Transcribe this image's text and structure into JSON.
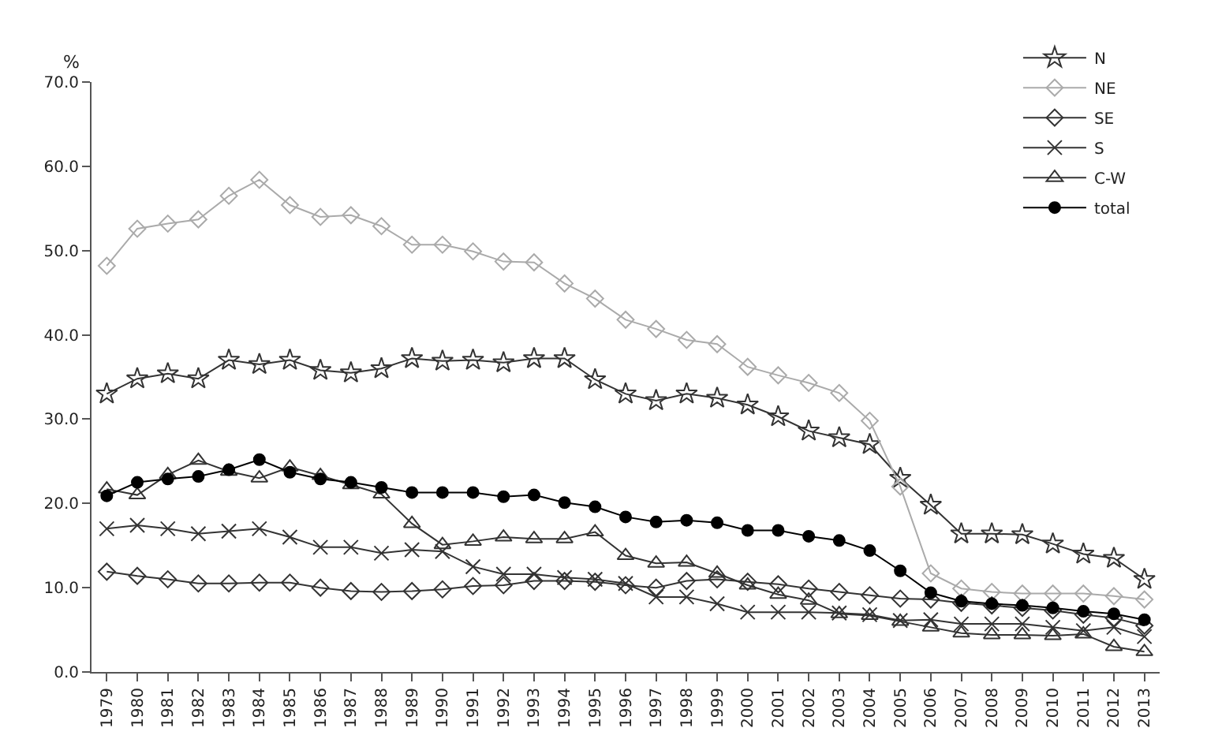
{
  "chart_data": {
    "type": "line",
    "ylabel": "%",
    "categories": [
      "1979",
      "1980",
      "1981",
      "1982",
      "1983",
      "1984",
      "1985",
      "1986",
      "1987",
      "1988",
      "1989",
      "1990",
      "1991",
      "1992",
      "1993",
      "1994",
      "1995",
      "1996",
      "1997",
      "1998",
      "1999",
      "2000",
      "2001",
      "2002",
      "2003",
      "2004",
      "2005",
      "2006",
      "2007",
      "2008",
      "2009",
      "2010",
      "2011",
      "2012",
      "2013"
    ],
    "series": [
      {
        "name": "N",
        "color": "#333333",
        "marker": "star",
        "values": [
          33.0,
          34.8,
          35.4,
          34.8,
          37.0,
          36.5,
          37.0,
          35.8,
          35.5,
          36.0,
          37.2,
          36.9,
          37.0,
          36.7,
          37.2,
          37.2,
          34.7,
          33.0,
          32.2,
          33.0,
          32.5,
          31.7,
          30.3,
          28.6,
          27.8,
          27.0,
          23.0,
          19.8,
          16.4,
          16.4,
          16.3,
          15.2,
          14.0,
          13.5,
          11.0
        ]
      },
      {
        "name": "NE",
        "color": "#aaaaaa",
        "marker": "diamond",
        "values": [
          48.2,
          52.6,
          53.2,
          53.7,
          56.5,
          58.4,
          55.4,
          54.0,
          54.2,
          52.9,
          50.7,
          50.7,
          49.9,
          48.7,
          48.6,
          46.1,
          44.3,
          41.8,
          40.7,
          39.4,
          38.9,
          36.2,
          35.2,
          34.3,
          33.1,
          29.8,
          22.0,
          11.7,
          9.9,
          9.5,
          9.3,
          9.3,
          9.3,
          9.0,
          8.6
        ]
      },
      {
        "name": "SE",
        "color": "#333333",
        "marker": "diamond",
        "values": [
          11.9,
          11.4,
          11.0,
          10.5,
          10.5,
          10.6,
          10.6,
          10.0,
          9.6,
          9.5,
          9.6,
          9.8,
          10.2,
          10.3,
          10.8,
          10.8,
          10.7,
          10.3,
          10.0,
          10.8,
          11.0,
          10.7,
          10.4,
          9.9,
          9.5,
          9.1,
          8.7,
          8.6,
          8.2,
          7.9,
          7.6,
          7.3,
          6.8,
          6.4,
          5.5
        ]
      },
      {
        "name": "S",
        "color": "#333333",
        "marker": "cross",
        "values": [
          17.0,
          17.4,
          17.0,
          16.4,
          16.7,
          17.0,
          16.0,
          14.8,
          14.8,
          14.1,
          14.5,
          14.3,
          12.5,
          11.6,
          11.6,
          11.2,
          11.0,
          10.5,
          8.9,
          8.9,
          8.1,
          7.1,
          7.1,
          7.1,
          7.0,
          6.8,
          6.1,
          6.2,
          5.7,
          5.7,
          5.7,
          5.3,
          4.9,
          5.3,
          4.2
        ]
      },
      {
        "name": "C-W",
        "color": "#333333",
        "marker": "triangle",
        "values": [
          21.7,
          21.0,
          23.4,
          25.1,
          23.8,
          23.0,
          24.3,
          23.3,
          22.2,
          21.1,
          17.6,
          15.1,
          15.5,
          16.0,
          15.8,
          15.8,
          16.6,
          13.8,
          12.9,
          13.0,
          11.7,
          10.3,
          9.2,
          8.5,
          6.9,
          6.7,
          6.0,
          5.3,
          4.6,
          4.4,
          4.4,
          4.3,
          4.5,
          3.0,
          2.4
        ]
      },
      {
        "name": "total",
        "color": "#000000",
        "marker": "circle",
        "values": [
          20.9,
          22.5,
          22.9,
          23.2,
          24.0,
          25.2,
          23.7,
          22.9,
          22.5,
          21.9,
          21.3,
          21.3,
          21.3,
          20.8,
          21.0,
          20.1,
          19.6,
          18.4,
          17.8,
          18.0,
          17.7,
          16.8,
          16.8,
          16.1,
          15.6,
          14.4,
          12.0,
          9.4,
          8.4,
          8.1,
          7.9,
          7.6,
          7.2,
          6.9,
          6.2
        ]
      }
    ],
    "ylim": [
      0,
      70
    ],
    "yticks": [
      {
        "value": 0,
        "label": "0.0"
      },
      {
        "value": 10,
        "label": "10.0"
      },
      {
        "value": 20,
        "label": "20.0"
      },
      {
        "value": 30,
        "label": "30.0"
      },
      {
        "value": 40,
        "label": "40.0"
      },
      {
        "value": 50,
        "label": "50.0"
      },
      {
        "value": 60,
        "label": "60.0"
      },
      {
        "value": 70,
        "label": "70.0"
      }
    ],
    "grid": false,
    "legend": "top right",
    "line_style": "solid"
  }
}
